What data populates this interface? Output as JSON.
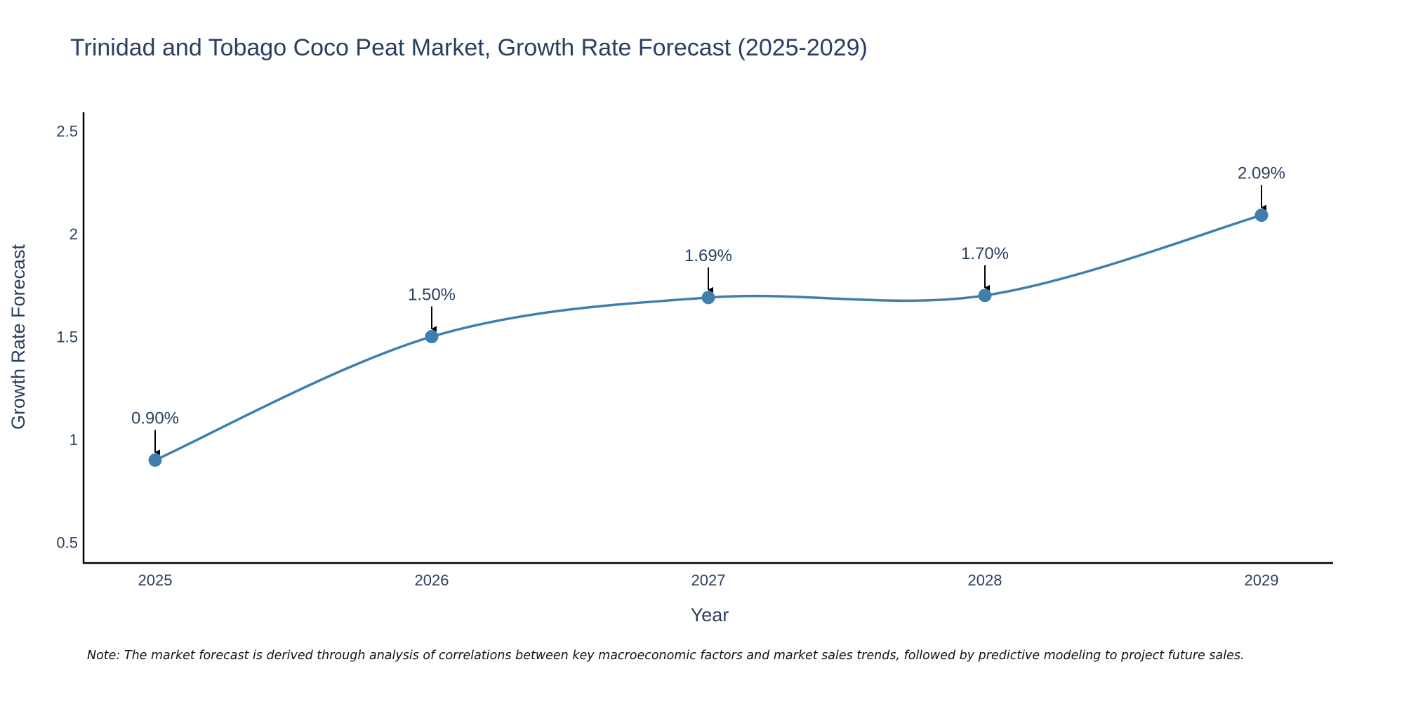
{
  "chart_data": {
    "type": "line",
    "title": "Trinidad and Tobago Coco Peat Market, Growth Rate Forecast (2025-2029)",
    "xlabel": "Year",
    "ylabel": "Growth Rate Forecast",
    "categories": [
      "2025",
      "2026",
      "2027",
      "2028",
      "2029"
    ],
    "series": [
      {
        "name": "Growth Rate Forecast",
        "values": [
          0.9,
          1.5,
          1.69,
          1.7,
          2.09
        ],
        "labels": [
          "0.90%",
          "1.50%",
          "1.69%",
          "1.70%",
          "2.09%"
        ]
      }
    ],
    "yticks": [
      0.5,
      1,
      1.5,
      2,
      2.5
    ],
    "ytick_labels": [
      "0.5",
      "1",
      "1.5",
      "2",
      "2.5"
    ],
    "ylim": [
      0.4,
      2.59
    ],
    "grid": false,
    "line_color": "#3f7fad",
    "note": "Note: The market forecast is derived through analysis of correlations between key macroeconomic factors and market sales trends, followed by predictive modeling to project future sales."
  }
}
